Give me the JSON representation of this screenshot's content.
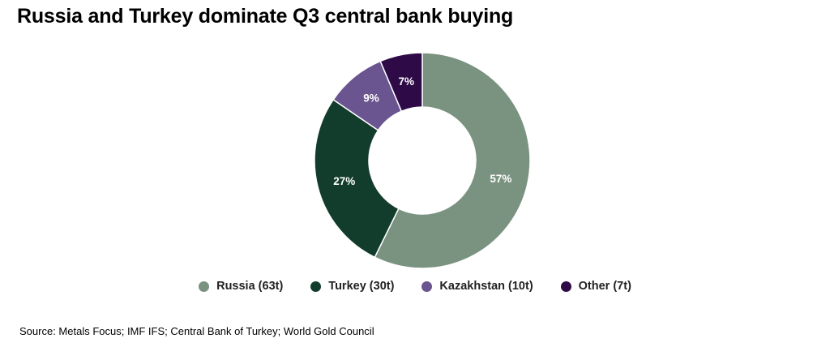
{
  "chart_data": {
    "type": "pie",
    "title": "Russia and Turkey dominate Q3 central bank buying",
    "donut": true,
    "slices": [
      {
        "name": "Russia (63t)",
        "value": 63,
        "label": "57%",
        "color": "#7a9280"
      },
      {
        "name": "Turkey (30t)",
        "value": 30,
        "label": "27%",
        "color": "#123d2d"
      },
      {
        "name": "Kazakhstan (10t)",
        "value": 10,
        "label": "9%",
        "color": "#6a5590"
      },
      {
        "name": "Other (7t)",
        "value": 7,
        "label": "7%",
        "color": "#2e0a46"
      }
    ],
    "legend_position": "bottom",
    "source": "Source: Metals Focus; IMF IFS; Central Bank of Turkey; World Gold Council"
  }
}
